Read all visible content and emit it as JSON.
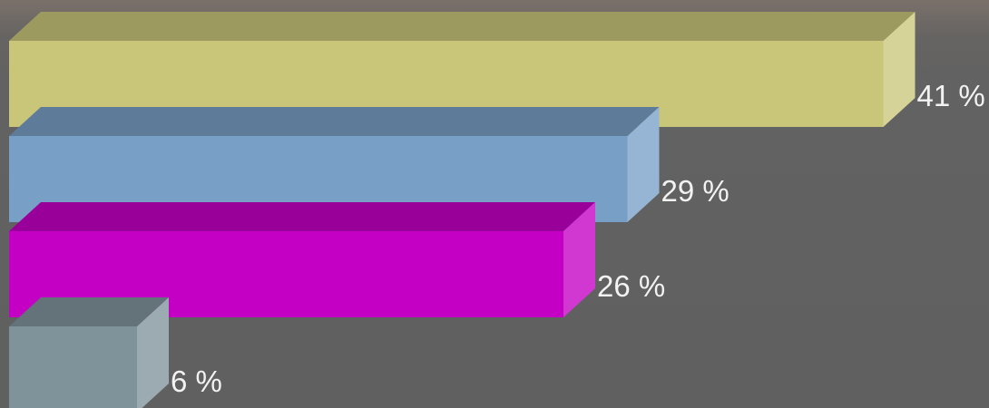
{
  "chart_data": {
    "type": "bar",
    "orientation": "horizontal",
    "style": "3d",
    "values": [
      41,
      29,
      26,
      6
    ],
    "labels": [
      "41 %",
      "29 %",
      "26 %",
      "6 %"
    ],
    "colors": [
      "#c9c67a",
      "#789fc6",
      "#c400c4",
      "#7f939b"
    ],
    "title": "",
    "xlabel": "",
    "ylabel": "",
    "grid": false
  }
}
